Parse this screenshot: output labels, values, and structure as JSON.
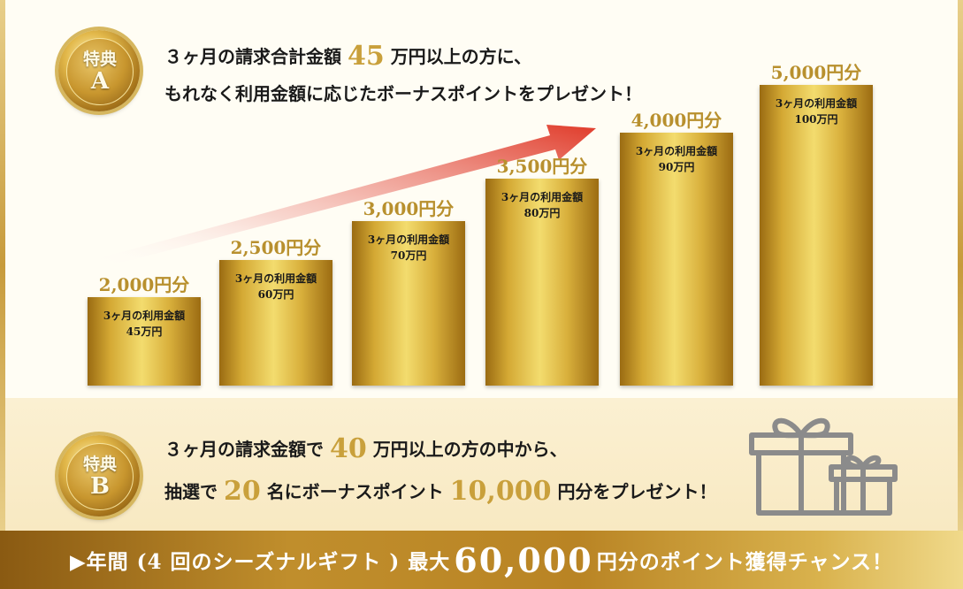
{
  "benefit_a": {
    "medal_top": "特典",
    "medal_bottom": "A",
    "line1_pre": "３ヶ月の請求合計金額",
    "line1_num": "45",
    "line1_post": "万円以上の方に、",
    "line2": "もれなく利用金額に応じたボーナスポイントをプレゼント！"
  },
  "bars": [
    {
      "label": "2,000円分",
      "line1": "3ヶ月の利用金額",
      "line2": "45万円"
    },
    {
      "label": "2,500円分",
      "line1": "3ヶ月の利用金額",
      "line2": "60万円"
    },
    {
      "label": "3,000円分",
      "line1": "3ヶ月の利用金額",
      "line2": "70万円"
    },
    {
      "label": "3,500円分",
      "line1": "3ヶ月の利用金額",
      "line2": "80万円"
    },
    {
      "label": "4,000円分",
      "line1": "3ヶ月の利用金額",
      "line2": "90万円"
    },
    {
      "label": "5,000円分",
      "line1": "3ヶ月の利用金額",
      "line2": "100万円"
    }
  ],
  "benefit_b": {
    "medal_top": "特典",
    "medal_bottom": "B",
    "line1_pre": "３ヶ月の請求金額で",
    "line1_num": "40",
    "line1_post": "万円以上の方の中から、",
    "line2_pre": "抽選で",
    "line2_num1": "20",
    "line2_mid": "名にボーナスポイント",
    "line2_num2": "10,000",
    "line2_post": "円分をプレゼント！"
  },
  "footer": {
    "pre": "▶年間 (4 回のシーズナルギフト ) 最大",
    "num": "60,000",
    "post": "円分のポイント獲得チャンス！"
  },
  "icons": {
    "gift": "gift-boxes-icon",
    "arrow": "rising-arrow-icon"
  },
  "colors": {
    "gold_text": "#c9a03b",
    "arrow": "#e03b2a",
    "footer_bg": "#b98424"
  }
}
